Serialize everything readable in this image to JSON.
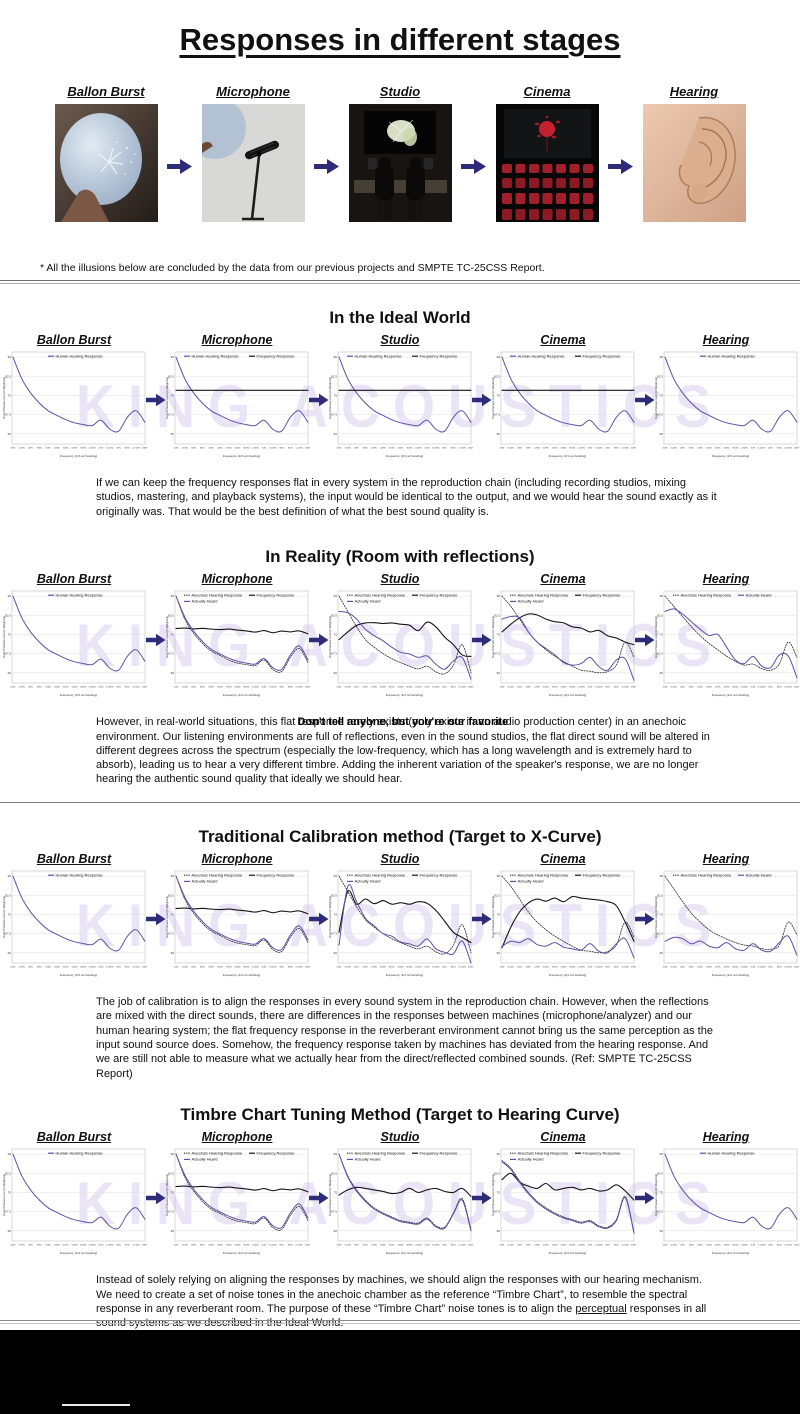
{
  "page": {
    "title": "Responses in different stages",
    "footnote": "* All the illusions below are concluded by the data from our previous projects and SMPTE TC-25CSS Report.",
    "watermark": "KING ACOUSTICS"
  },
  "pipeline": {
    "stages": [
      {
        "label": "Ballon Burst"
      },
      {
        "label": "Microphone"
      },
      {
        "label": "Studio"
      },
      {
        "label": "Cinema"
      },
      {
        "label": "Hearing"
      }
    ]
  },
  "sections": [
    {
      "heading": "In the Ideal World",
      "paragraph": "If we can keep the frequency responses flat in every system in the reproduction chain (including recording studios, mixing studios, mastering, and playback systems), the input would be identical to the output, and we would hear the sound exactly as it originally was. That would be the best definition of what the best sound quality is."
    },
    {
      "heading": "In Reality (Room with reflections)",
      "paragraph": "However, in real-world situations, this flat response rarely exists (only exists in an audio production center) in an anechoic environment. Our listening environments are full of reflections, even in the sound studios, the flat direct sound will be altered in different degrees across the spectrum (especially the low-frequency, which has a long wavelength and is extremely hard to absorb), leading us to hear a very different timbre. Adding the inherent variation of the speaker's response, we are no longer hearing the authentic sound quality that ideally we should hear.",
      "overlay_text": "Don't tell anyone, but you're our favorite"
    },
    {
      "heading": "Traditional Calibration method (Target to X-Curve)",
      "paragraph": "The job of calibration is to align the responses in every sound system in the reproduction chain. However, when the reflections are mixed with the direct sounds, there are differences in the responses between machines (microphone/analyzer) and our human hearing system; the flat frequency response in the reverberant environment cannot bring us the same perception as the input sound source does. Somehow, the frequency response taken by machines has deviated from the hearing response. And we are still not able to measure what we actually hear from the direct/reflected combined sounds. (Ref: SMPTE TC-25CSS Report)"
    },
    {
      "heading": "Timbre Chart Tuning Method (Target to Hearing Curve)",
      "paragraph_before": "Instead of solely relying on aligning the responses by machines, we should align the responses with our hearing mechanism. We need to create a set of noise tones in the anechoic chamber as the reference “Timbre Chart”, to resemble the spectral response in any reverberant room. The purpose of these “Timbre Chart” noise tones is to align the ",
      "paragraph_underlined": "perceptual",
      "paragraph_after": " responses in all sound systems as we described in the Ideal World."
    }
  ],
  "colors": {
    "accent_purple": "#5a52a8",
    "curve_black": "#161616",
    "dotted_dark": "#2a2a2a",
    "arrow": "#2e2b78",
    "watermark": "#ebe3f6",
    "grid": "#e0e0e0"
  },
  "chart_data": {
    "type": "line",
    "x_label": "Frequency (1/3 oct banding)",
    "y_label": "Sound Pressure Level (C-Weighting)",
    "x_ticks": [
      "20Hz",
      "31.5Hz",
      "50Hz",
      "80Hz",
      "125Hz",
      "200Hz",
      "315Hz",
      "500Hz",
      "800Hz",
      "1.25kHz",
      "2kHz",
      "3.15kHz",
      "5kHz",
      "8kHz",
      "12.5kHz",
      "20kHz"
    ],
    "y_ticks": [
      90,
      82.5,
      75,
      67.5,
      60
    ],
    "ylim": [
      56,
      92
    ],
    "legend_labels": [
      "Human Hearing Response",
      "Frequency Response",
      "Anechoic Hearing Response",
      "Actually Heard"
    ],
    "curves": {
      "human_hearing": [
        90,
        81.5,
        76,
        72,
        69,
        67.2,
        65.5,
        64.3,
        63.6,
        63.2,
        65.3,
        61.8,
        61,
        66.5,
        69,
        64.5
      ],
      "flat_response": [
        77,
        77,
        77,
        77,
        77,
        77,
        77,
        77,
        77,
        77,
        77,
        77,
        77,
        77,
        77,
        77
      ],
      "mic_room_response": [
        77.3,
        77.5,
        77.2,
        77.4,
        77.1,
        76.9,
        77.1,
        76.7,
        76.4,
        75.9,
        76.5,
        75.7,
        76.3,
        76,
        76.4,
        75.2
      ],
      "mic_anechoic": [
        90,
        81,
        75.5,
        71.5,
        68.5,
        66.8,
        65,
        63.8,
        63.2,
        62.8,
        65,
        61.3,
        60.5,
        66,
        69.5,
        64
      ],
      "mic_actually_heard": [
        90,
        81.8,
        76.3,
        72.3,
        69.2,
        67.4,
        65.7,
        64.5,
        63.8,
        63.4,
        65.6,
        62,
        61.3,
        67,
        70.5,
        65
      ],
      "studio_room_response": [
        73,
        76,
        78.5,
        79.5,
        79.6,
        79.3,
        79.5,
        79,
        78.6,
        76.5,
        79.8,
        78,
        74,
        71,
        67,
        66.4
      ],
      "studio_anechoic": [
        90,
        84,
        78,
        73,
        70,
        67.5,
        65.5,
        64,
        62.6,
        61.5,
        62.6,
        60.4,
        59.6,
        63,
        71,
        60
      ],
      "studio_actually_heard": [
        84,
        83.5,
        81,
        77,
        74.5,
        72.5,
        70,
        68,
        67.4,
        66,
        66.6,
        63.4,
        61.4,
        64.6,
        66,
        57.5
      ],
      "cinema_room_response": [
        76,
        79,
        81.5,
        83,
        82.6,
        81,
        80,
        79.5,
        78,
        77.5,
        76,
        76.6,
        74.5,
        73.6,
        72,
        71
      ],
      "cinema_anechoic": [
        90,
        86,
        81,
        76,
        72,
        69,
        66.5,
        64.4,
        62.6,
        61,
        60.6,
        60,
        60.5,
        63,
        72,
        66
      ],
      "cinema_actually_heard": [
        81,
        82,
        81.5,
        76,
        72,
        69.5,
        67,
        64,
        63,
        63.6,
        66,
        62.4,
        61,
        65,
        65.5,
        57
      ],
      "hearing_anechoic": [
        90,
        86,
        82,
        78,
        74.5,
        71.5,
        69,
        66.5,
        64.5,
        63,
        63.4,
        61.6,
        61,
        63.5,
        72,
        66
      ],
      "hearing_actually_heard": [
        84,
        85,
        83,
        80,
        77,
        74.6,
        75,
        70,
        65,
        63.6,
        66.4,
        62.6,
        62,
        67,
        66.6,
        58
      ],
      "studio_xcurve_response": [
        68,
        84,
        79,
        81,
        79.2,
        80.4,
        79,
        79.6,
        79,
        80,
        79.4,
        76.6,
        72.4,
        68,
        66,
        64
      ],
      "studio_xcurve_heard": [
        63,
        86,
        80,
        73.5,
        70.5,
        67.5,
        66.5,
        64.2,
        63.5,
        62.6,
        65.4,
        61.6,
        60.2,
        59.6,
        64.6,
        56
      ],
      "cinema_xcurve_response": [
        62,
        70,
        76,
        79.5,
        81,
        80.2,
        81.4,
        80,
        82,
        81.4,
        81,
        80.6,
        80,
        78.4,
        72,
        64.5
      ],
      "cinema_xcurve_heard": [
        62.5,
        64.5,
        64,
        65.5,
        63.2,
        62.6,
        64,
        62.2,
        61.6,
        61,
        63.6,
        60.6,
        60,
        63.6,
        65.5,
        58
      ],
      "hearing_xcurve_anechoic": [
        90,
        85,
        80,
        75.5,
        72,
        69,
        67,
        65.4,
        64,
        63,
        62.6,
        61.6,
        61.4,
        63,
        72,
        67
      ],
      "hearing_xcurve_heard": [
        64.5,
        66,
        65.5,
        63.5,
        64.6,
        62.6,
        62,
        64,
        61.6,
        61,
        63.6,
        61,
        60.6,
        64,
        66.5,
        59
      ],
      "studio_timbre_response": [
        74,
        76,
        77,
        76.6,
        76,
        75.4,
        74.6,
        75,
        76.6,
        75,
        76,
        76.6,
        75.4,
        75,
        76.6,
        73.4
      ],
      "studio_timbre_anechoic": [
        90,
        81.5,
        76,
        72,
        69,
        67,
        65.4,
        64,
        63.4,
        63,
        65,
        62,
        61.4,
        67,
        72.6,
        60.6
      ],
      "studio_timbre_heard": [
        90,
        81,
        75.5,
        71.5,
        68.5,
        66.6,
        65,
        63.6,
        63,
        62.6,
        64.6,
        61.6,
        61,
        66.6,
        72,
        60
      ],
      "cinema_timbre_response": [
        80,
        82.5,
        79,
        77.5,
        76.6,
        78.5,
        76,
        76.6,
        77,
        76,
        76.6,
        75.6,
        76,
        78,
        75.6,
        72
      ],
      "cinema_timbre_anechoic": [
        87.5,
        84.5,
        79.5,
        75,
        71.5,
        69,
        67,
        65.4,
        64.4,
        63.4,
        64,
        62,
        61.4,
        64.5,
        73.5,
        59.5
      ],
      "cinema_timbre_heard": [
        87,
        84,
        79,
        74.5,
        71,
        68.5,
        66.5,
        65,
        64,
        63,
        63.6,
        61.6,
        61,
        64,
        73,
        59
      ]
    },
    "sections": [
      {
        "section": "In the Ideal World",
        "charts": [
          {
            "stage": "Ballon Burst",
            "series": [
              {
                "label": "Human Hearing Response",
                "curve": "human_hearing",
                "style": "purple"
              }
            ]
          },
          {
            "stage": "Microphone",
            "series": [
              {
                "label": "Human Hearing Response",
                "curve": "human_hearing",
                "style": "purple"
              },
              {
                "label": "Frequency Response",
                "curve": "flat_response",
                "style": "black"
              }
            ]
          },
          {
            "stage": "Studio",
            "series": [
              {
                "label": "Human Hearing Response",
                "curve": "human_hearing",
                "style": "purple"
              },
              {
                "label": "Frequency Response",
                "curve": "flat_response",
                "style": "black"
              }
            ]
          },
          {
            "stage": "Cinema",
            "series": [
              {
                "label": "Human Hearing Response",
                "curve": "human_hearing",
                "style": "purple"
              },
              {
                "label": "Frequency Response",
                "curve": "flat_response",
                "style": "black"
              }
            ]
          },
          {
            "stage": "Hearing",
            "series": [
              {
                "label": "Human Hearing Response",
                "curve": "human_hearing",
                "style": "purple"
              }
            ]
          }
        ]
      },
      {
        "section": "In Reality (Room with reflections)",
        "charts": [
          {
            "stage": "Ballon Burst",
            "series": [
              {
                "label": "Human Hearing Response",
                "curve": "human_hearing",
                "style": "purple"
              }
            ]
          },
          {
            "stage": "Microphone",
            "series": [
              {
                "label": "Anechoic Hearing Response",
                "curve": "mic_anechoic",
                "style": "dotted"
              },
              {
                "label": "Frequency Response",
                "curve": "mic_room_response",
                "style": "black"
              },
              {
                "label": "Actually Heard",
                "curve": "mic_actually_heard",
                "style": "purple"
              }
            ]
          },
          {
            "stage": "Studio",
            "series": [
              {
                "label": "Anechoic Hearing Response",
                "curve": "studio_anechoic",
                "style": "dotted"
              },
              {
                "label": "Frequency Response",
                "curve": "studio_room_response",
                "style": "black"
              },
              {
                "label": "Actually Heard",
                "curve": "studio_actually_heard",
                "style": "purple"
              }
            ]
          },
          {
            "stage": "Cinema",
            "series": [
              {
                "label": "Anechoic Hearing Response",
                "curve": "cinema_anechoic",
                "style": "dotted"
              },
              {
                "label": "Frequency Response",
                "curve": "cinema_room_response",
                "style": "black"
              },
              {
                "label": "Actually Heard",
                "curve": "cinema_actually_heard",
                "style": "purple"
              }
            ]
          },
          {
            "stage": "Hearing",
            "series": [
              {
                "label": "Anechoic Hearing Response",
                "curve": "hearing_anechoic",
                "style": "dotted"
              },
              {
                "label": "Actually Heard",
                "curve": "hearing_actually_heard",
                "style": "purple"
              }
            ]
          }
        ]
      },
      {
        "section": "Traditional Calibration method (Target to X-Curve)",
        "charts": [
          {
            "stage": "Ballon Burst",
            "series": [
              {
                "label": "Human Hearing Response",
                "curve": "human_hearing",
                "style": "purple"
              }
            ]
          },
          {
            "stage": "Microphone",
            "series": [
              {
                "label": "Anechoic Hearing Response",
                "curve": "mic_anechoic",
                "style": "dotted"
              },
              {
                "label": "Frequency Response",
                "curve": "mic_room_response",
                "style": "black"
              },
              {
                "label": "Actually Heard",
                "curve": "mic_actually_heard",
                "style": "purple"
              }
            ]
          },
          {
            "stage": "Studio",
            "series": [
              {
                "label": "Anechoic Hearing Response",
                "curve": "studio_anechoic",
                "style": "dotted"
              },
              {
                "label": "Frequency Response",
                "curve": "studio_xcurve_response",
                "style": "black"
              },
              {
                "label": "Actually Heard",
                "curve": "studio_xcurve_heard",
                "style": "purple"
              }
            ]
          },
          {
            "stage": "Cinema",
            "series": [
              {
                "label": "Anechoic Hearing Response",
                "curve": "cinema_anechoic",
                "style": "dotted"
              },
              {
                "label": "Frequency Response",
                "curve": "cinema_xcurve_response",
                "style": "black"
              },
              {
                "label": "Actually Heard",
                "curve": "cinema_xcurve_heard",
                "style": "purple"
              }
            ]
          },
          {
            "stage": "Hearing",
            "series": [
              {
                "label": "Anechoic Hearing Response",
                "curve": "hearing_xcurve_anechoic",
                "style": "dotted"
              },
              {
                "label": "Actually Heard",
                "curve": "hearing_xcurve_heard",
                "style": "purple"
              }
            ]
          }
        ]
      },
      {
        "section": "Timbre Chart Tuning Method (Target to Hearing Curve)",
        "charts": [
          {
            "stage": "Ballon Burst",
            "series": [
              {
                "label": "Human Hearing Response",
                "curve": "human_hearing",
                "style": "purple"
              }
            ]
          },
          {
            "stage": "Microphone",
            "series": [
              {
                "label": "Anechoic Hearing Response",
                "curve": "mic_anechoic",
                "style": "dotted"
              },
              {
                "label": "Frequency Response",
                "curve": "mic_room_response",
                "style": "black"
              },
              {
                "label": "Actually Heard",
                "curve": "mic_actually_heard",
                "style": "purple"
              }
            ]
          },
          {
            "stage": "Studio",
            "series": [
              {
                "label": "Anechoic Hearing Response",
                "curve": "studio_timbre_anechoic",
                "style": "dotted"
              },
              {
                "label": "Frequency Response",
                "curve": "studio_timbre_response",
                "style": "black"
              },
              {
                "label": "Actually Heard",
                "curve": "studio_timbre_heard",
                "style": "purple"
              }
            ]
          },
          {
            "stage": "Cinema",
            "series": [
              {
                "label": "Anechoic Hearing Response",
                "curve": "cinema_timbre_anechoic",
                "style": "dotted"
              },
              {
                "label": "Frequency Response",
                "curve": "cinema_timbre_response",
                "style": "black"
              },
              {
                "label": "Actually Heard",
                "curve": "cinema_timbre_heard",
                "style": "purple"
              }
            ]
          },
          {
            "stage": "Hearing",
            "series": [
              {
                "label": "Human Hearing Response",
                "curve": "human_hearing",
                "style": "purple"
              }
            ]
          }
        ]
      }
    ]
  }
}
